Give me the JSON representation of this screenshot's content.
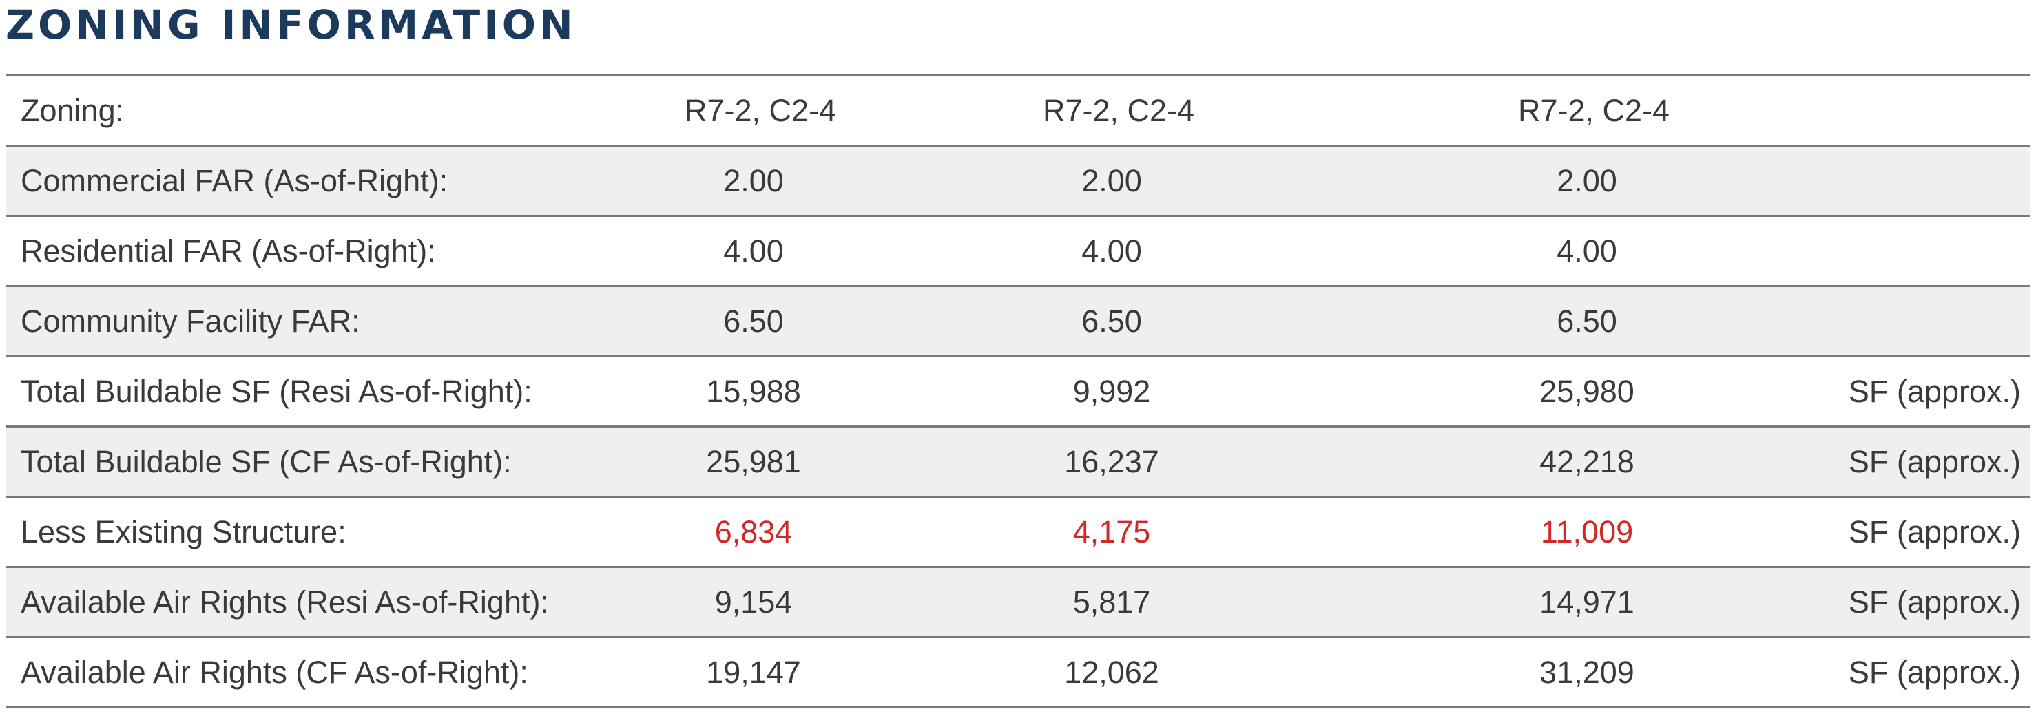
{
  "title": "ZONING INFORMATION",
  "colors": {
    "title": "#1c3a5c",
    "text": "#3a3a3a",
    "shaded_row": "#efefef",
    "rule": "#7a7a7a",
    "negative_value": "#cf2a2a"
  },
  "rows": [
    {
      "label": "Zoning:",
      "a": "R7-2, C2-4",
      "b": "R7-2, C2-4",
      "c": "R7-2, C2-4",
      "unit": ""
    },
    {
      "label": "Commercial FAR (As-of-Right):",
      "a": "2.00",
      "b": "2.00",
      "c": "2.00",
      "unit": ""
    },
    {
      "label": "Residential FAR (As-of-Right):",
      "a": "4.00",
      "b": "4.00",
      "c": "4.00",
      "unit": ""
    },
    {
      "label": "Community Facility FAR:",
      "a": "6.50",
      "b": "6.50",
      "c": "6.50",
      "unit": ""
    },
    {
      "label": "Total Buildable SF (Resi As-of-Right):",
      "a": "15,988",
      "b": "9,992",
      "c": "25,980",
      "unit": "SF (approx.)"
    },
    {
      "label": "Total Buildable SF (CF As-of-Right):",
      "a": "25,981",
      "b": "16,237",
      "c": "42,218",
      "unit": "SF (approx.)"
    },
    {
      "label": "Less Existing Structure:",
      "a": "6,834",
      "b": "4,175",
      "c": "11,009",
      "unit": "SF (approx.)"
    },
    {
      "label": "Available Air Rights (Resi As-of-Right):",
      "a": "9,154",
      "b": "5,817",
      "c": "14,971",
      "unit": "SF (approx.)"
    },
    {
      "label": "Available Air Rights (CF As-of-Right):",
      "a": "19,147",
      "b": "12,062",
      "c": "31,209",
      "unit": "SF (approx.)"
    }
  ]
}
